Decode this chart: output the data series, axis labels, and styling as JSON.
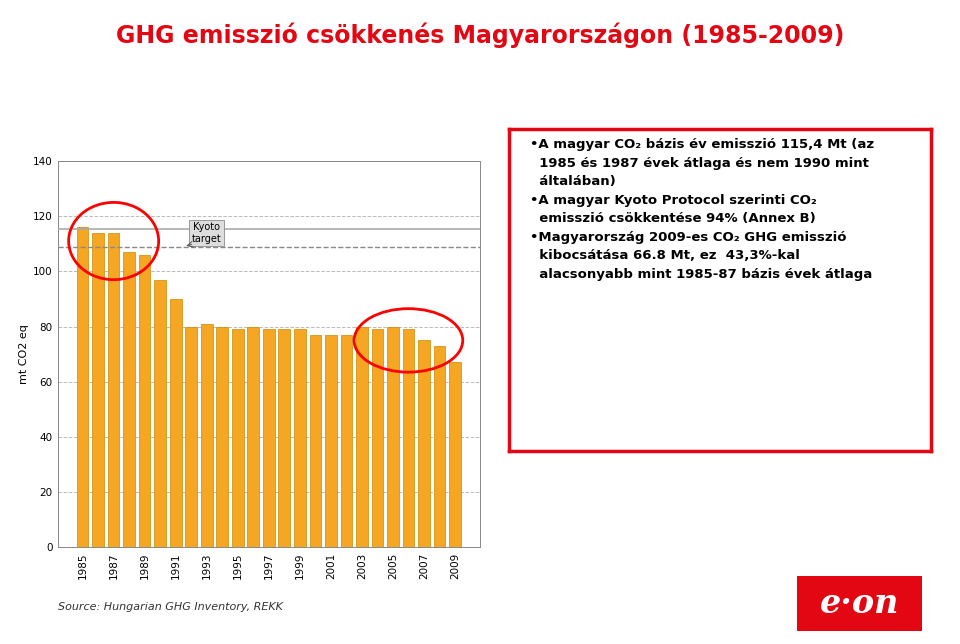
{
  "title_text": "GHG emisszió csökkenés Magyarországon (1985-2009)",
  "years": [
    1985,
    1986,
    1987,
    1988,
    1989,
    1990,
    1991,
    1992,
    1993,
    1994,
    1995,
    1996,
    1997,
    1998,
    1999,
    2000,
    2001,
    2002,
    2003,
    2004,
    2005,
    2006,
    2007,
    2008,
    2009
  ],
  "values": [
    116,
    114,
    114,
    107,
    106,
    97,
    90,
    80,
    81,
    80,
    79,
    80,
    79,
    79,
    79,
    77,
    77,
    77,
    80,
    79,
    80,
    79,
    75,
    73,
    67
  ],
  "bar_color": "#F5A623",
  "bar_edge_color": "#CC8800",
  "kyoto_target": 109,
  "base_line": 115.4,
  "ylabel": "mt CO2 eq",
  "ylim": [
    0,
    140
  ],
  "yticks": [
    0,
    20,
    40,
    60,
    80,
    100,
    120,
    140
  ],
  "background_color": "#FFFFFF",
  "chart_bg": "#FFFFFF",
  "grid_color": "#BBBBBB",
  "kyoto_line_color": "#888888",
  "base_line_color": "#AAAAAA",
  "source_text": "Source: Hungarian GHG Inventory, REKK",
  "eon_logo_color": "#E30613",
  "title_color": "#E30613",
  "text_box_border_color": "#E30613"
}
